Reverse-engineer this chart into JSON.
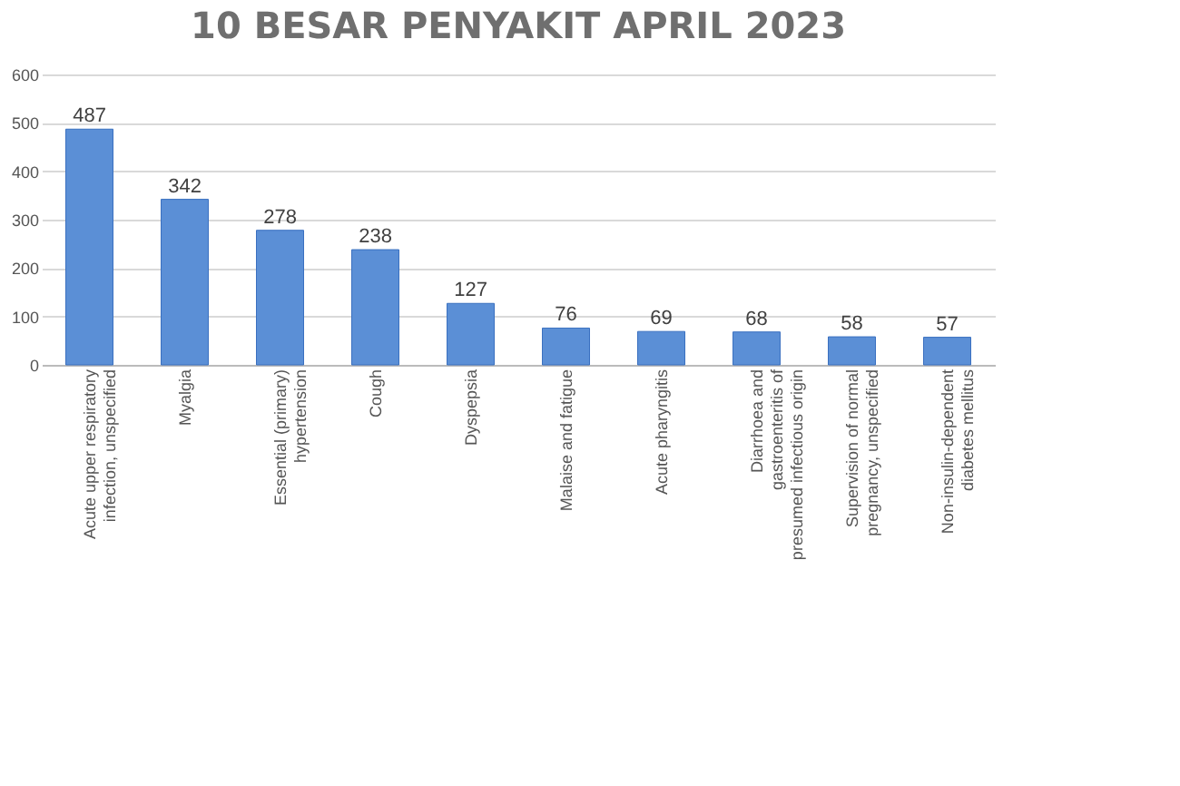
{
  "chart_data": {
    "type": "bar",
    "title": "10 BESAR PENYAKIT APRIL 2023",
    "categories": [
      "Acute upper respiratory infection, unspecified",
      "Myalgia",
      "Essential (primary) hypertension",
      "Cough",
      "Dyspepsia",
      "Malaise and fatigue",
      "Acute pharyngitis",
      "Diarrhoea and gastroenteritis of presumed infectious origin",
      "Supervision of normal pregnancy, unspecified",
      "Non-insulin-dependent diabetes mellitus"
    ],
    "values": [
      487,
      342,
      278,
      238,
      127,
      76,
      69,
      68,
      58,
      57
    ],
    "color": "#5b8fd6",
    "ylim": [
      0,
      600
    ],
    "yticks": [
      0,
      100,
      200,
      300,
      400,
      500,
      600
    ],
    "grid": "y",
    "data_labels": true
  }
}
